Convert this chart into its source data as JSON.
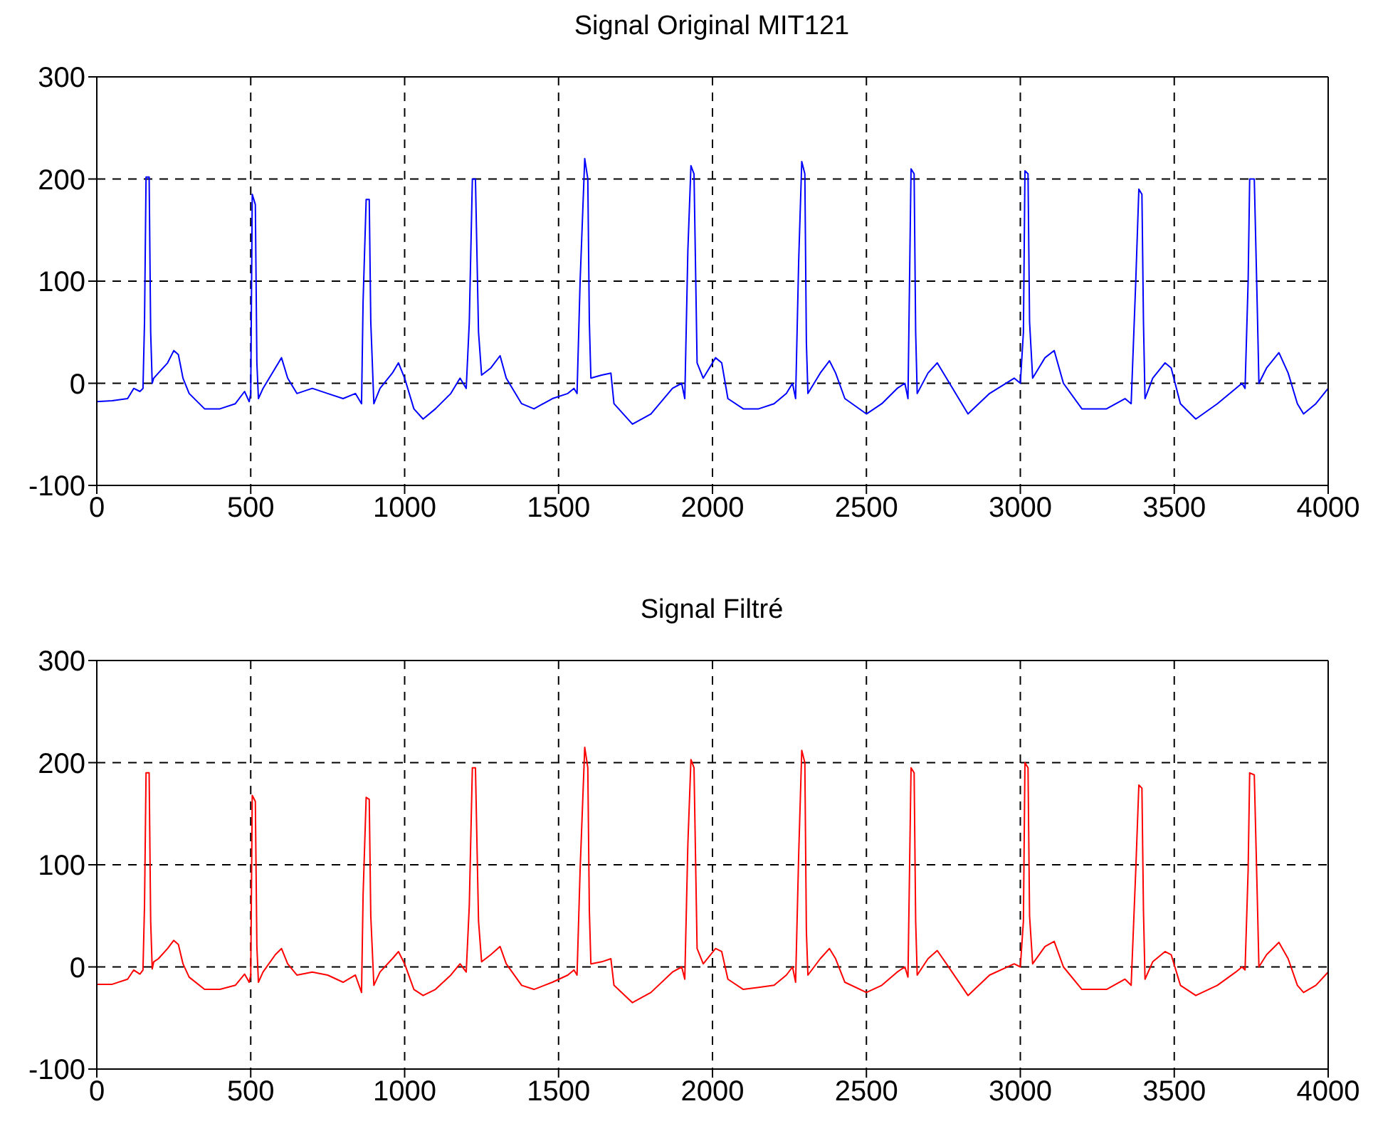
{
  "chart_data": [
    {
      "type": "line",
      "title": "Signal Original MIT121",
      "xlim": [
        0,
        4000
      ],
      "ylim": [
        -100,
        300
      ],
      "xticks": [
        0,
        500,
        1000,
        1500,
        2000,
        2500,
        3000,
        3500,
        4000
      ],
      "yticks": [
        -100,
        0,
        100,
        200,
        300
      ],
      "grid": true,
      "series": [
        {
          "color": "#0000ff",
          "x": [
            0,
            50,
            100,
            120,
            140,
            150,
            155,
            160,
            170,
            175,
            180,
            185,
            200,
            230,
            250,
            265,
            280,
            300,
            350,
            400,
            450,
            480,
            495,
            500,
            505,
            515,
            520,
            525,
            540,
            580,
            600,
            620,
            650,
            700,
            750,
            800,
            840,
            860,
            865,
            875,
            885,
            890,
            900,
            920,
            960,
            980,
            1000,
            1030,
            1060,
            1100,
            1150,
            1180,
            1200,
            1210,
            1220,
            1230,
            1240,
            1250,
            1280,
            1310,
            1330,
            1380,
            1420,
            1480,
            1530,
            1550,
            1560,
            1570,
            1585,
            1595,
            1600,
            1605,
            1640,
            1670,
            1680,
            1740,
            1800,
            1870,
            1900,
            1910,
            1920,
            1930,
            1940,
            1950,
            1970,
            2010,
            2030,
            2050,
            2100,
            2150,
            2200,
            2240,
            2260,
            2270,
            2280,
            2290,
            2300,
            2305,
            2310,
            2350,
            2380,
            2400,
            2430,
            2500,
            2550,
            2600,
            2625,
            2635,
            2645,
            2655,
            2660,
            2665,
            2700,
            2730,
            2760,
            2830,
            2900,
            2980,
            3000,
            3010,
            3015,
            3025,
            3030,
            3040,
            3080,
            3110,
            3140,
            3200,
            3280,
            3340,
            3360,
            3375,
            3385,
            3395,
            3400,
            3405,
            3430,
            3470,
            3490,
            3520,
            3570,
            3640,
            3700,
            3720,
            3730,
            3740,
            3745,
            3760,
            3770,
            3775,
            3800,
            3840,
            3870,
            3900,
            3920,
            3960,
            4000
          ],
          "values": [
            -18,
            -17,
            -15,
            -5,
            -8,
            -5,
            60,
            202,
            202,
            50,
            0,
            5,
            10,
            20,
            32,
            28,
            5,
            -10,
            -25,
            -25,
            -20,
            -8,
            -18,
            -10,
            185,
            175,
            20,
            -15,
            -5,
            15,
            25,
            5,
            -10,
            -5,
            -10,
            -15,
            -10,
            -20,
            80,
            180,
            180,
            60,
            -20,
            -5,
            10,
            20,
            5,
            -25,
            -35,
            -25,
            -10,
            5,
            -5,
            60,
            200,
            200,
            50,
            8,
            15,
            27,
            5,
            -20,
            -25,
            -15,
            -10,
            -5,
            -10,
            100,
            220,
            200,
            60,
            5,
            8,
            10,
            -20,
            -40,
            -30,
            -5,
            0,
            -15,
            130,
            213,
            205,
            20,
            5,
            25,
            20,
            -15,
            -25,
            -25,
            -20,
            -10,
            0,
            -15,
            120,
            217,
            205,
            40,
            -10,
            10,
            22,
            10,
            -15,
            -30,
            -20,
            -5,
            0,
            -15,
            210,
            205,
            50,
            -10,
            10,
            20,
            5,
            -30,
            -10,
            5,
            0,
            50,
            208,
            205,
            60,
            5,
            25,
            32,
            0,
            -25,
            -25,
            -15,
            -20,
            100,
            190,
            185,
            60,
            -15,
            5,
            20,
            15,
            -20,
            -35,
            -20,
            -5,
            0,
            -5,
            100,
            200,
            200,
            70,
            0,
            15,
            30,
            10,
            -20,
            -30,
            -20,
            -5
          ]
        }
      ]
    },
    {
      "type": "line",
      "title": "Signal Filtré",
      "xlim": [
        0,
        4000
      ],
      "ylim": [
        -100,
        300
      ],
      "xticks": [
        0,
        500,
        1000,
        1500,
        2000,
        2500,
        3000,
        3500,
        4000
      ],
      "yticks": [
        -100,
        0,
        100,
        200,
        300
      ],
      "grid": true,
      "series": [
        {
          "color": "#ff0000",
          "x": [
            0,
            50,
            100,
            120,
            140,
            150,
            155,
            160,
            170,
            175,
            180,
            185,
            200,
            230,
            250,
            265,
            280,
            300,
            350,
            400,
            450,
            480,
            495,
            500,
            505,
            515,
            520,
            525,
            540,
            580,
            600,
            620,
            650,
            700,
            750,
            800,
            840,
            860,
            865,
            875,
            885,
            890,
            900,
            920,
            960,
            980,
            1000,
            1030,
            1060,
            1100,
            1150,
            1180,
            1200,
            1210,
            1220,
            1230,
            1240,
            1250,
            1280,
            1310,
            1330,
            1380,
            1420,
            1480,
            1530,
            1550,
            1560,
            1570,
            1585,
            1595,
            1600,
            1605,
            1640,
            1670,
            1680,
            1740,
            1800,
            1870,
            1900,
            1910,
            1920,
            1930,
            1940,
            1950,
            1970,
            2010,
            2030,
            2050,
            2100,
            2150,
            2200,
            2240,
            2260,
            2270,
            2280,
            2290,
            2300,
            2305,
            2310,
            2350,
            2380,
            2400,
            2430,
            2500,
            2550,
            2600,
            2625,
            2635,
            2645,
            2655,
            2660,
            2665,
            2700,
            2730,
            2760,
            2830,
            2900,
            2980,
            3000,
            3010,
            3015,
            3025,
            3030,
            3040,
            3080,
            3110,
            3140,
            3200,
            3280,
            3340,
            3360,
            3375,
            3385,
            3395,
            3400,
            3405,
            3430,
            3470,
            3490,
            3520,
            3570,
            3640,
            3700,
            3720,
            3730,
            3740,
            3745,
            3760,
            3770,
            3775,
            3800,
            3840,
            3870,
            3900,
            3920,
            3960,
            4000
          ],
          "values": [
            -17,
            -17,
            -12,
            -3,
            -7,
            -3,
            60,
            190,
            190,
            45,
            -2,
            5,
            8,
            18,
            26,
            22,
            3,
            -10,
            -22,
            -22,
            -18,
            -7,
            -15,
            -8,
            168,
            162,
            20,
            -15,
            -5,
            12,
            18,
            3,
            -8,
            -5,
            -8,
            -15,
            -8,
            -25,
            70,
            166,
            164,
            50,
            -18,
            -5,
            8,
            15,
            3,
            -22,
            -28,
            -22,
            -8,
            3,
            -5,
            60,
            195,
            195,
            45,
            5,
            12,
            20,
            3,
            -18,
            -22,
            -15,
            -8,
            -3,
            -8,
            95,
            215,
            195,
            55,
            3,
            5,
            8,
            -18,
            -35,
            -25,
            -5,
            0,
            -12,
            120,
            203,
            195,
            18,
            3,
            18,
            15,
            -12,
            -22,
            -20,
            -18,
            -8,
            0,
            -15,
            110,
            212,
            200,
            35,
            -8,
            8,
            18,
            8,
            -15,
            -25,
            -18,
            -5,
            0,
            -10,
            195,
            190,
            45,
            -8,
            8,
            16,
            3,
            -28,
            -8,
            3,
            0,
            45,
            200,
            195,
            50,
            3,
            20,
            25,
            0,
            -22,
            -22,
            -12,
            -18,
            95,
            178,
            175,
            55,
            -12,
            5,
            15,
            12,
            -18,
            -28,
            -18,
            -5,
            0,
            -3,
            95,
            190,
            188,
            65,
            0,
            12,
            24,
            8,
            -18,
            -25,
            -18,
            -5
          ]
        }
      ]
    }
  ]
}
